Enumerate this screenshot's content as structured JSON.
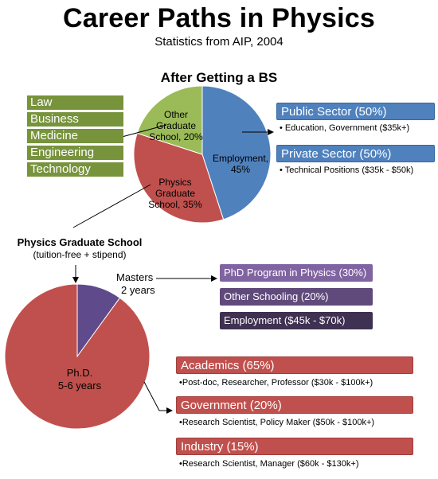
{
  "title": "Career Paths in Physics",
  "subtitle": "Statistics from AIP, 2004",
  "bs_section": {
    "heading": "After Getting a BS",
    "slices": [
      {
        "label": "Employment,",
        "value_label": "45%",
        "value": 45,
        "color": "#4f81bd"
      },
      {
        "label": "Physics Graduate School, 35%",
        "line1": "Physics",
        "line2": "Graduate",
        "line3": "School, 35%",
        "value": 35,
        "color": "#c0504d"
      },
      {
        "label": "Other Graduate School, 20%",
        "line1": "Other",
        "line2": "Graduate",
        "line3": "School, 20%",
        "value": 20,
        "color": "#9bbb59"
      }
    ],
    "other_grad_fields": [
      "Law",
      "Business",
      "Medicine",
      "Engineering",
      "Technology"
    ],
    "field_color": "#77933c",
    "sectors": [
      {
        "label": "Public Sector (50%)",
        "detail": "• Education, Government ($35k+)"
      },
      {
        "label": "Private Sector (50%)",
        "detail": "• Technical Positions ($35k - $50k)"
      }
    ]
  },
  "grad_section": {
    "heading": "Physics Graduate School",
    "subheading": "(tuition-free + stipend)",
    "slices": [
      {
        "label": "Masters",
        "sublabel": "2 years",
        "value": 10,
        "color": "#5f4a8b"
      },
      {
        "label": "Ph.D.",
        "sublabel": "5-6 years",
        "value": 90,
        "color": "#c0504d"
      }
    ],
    "masters_outcomes": [
      {
        "label": "PhD Program in Physics (30%)",
        "color": "#8064a2"
      },
      {
        "label": "Other Schooling (20%)",
        "color": "#604a7b"
      },
      {
        "label": "Employment ($45k - $70k)",
        "color": "#3f3151"
      }
    ],
    "phd_outcomes": [
      {
        "label": "Academics (65%)",
        "detail": "•Post-doc, Researcher, Professor ($30k - $100k+)"
      },
      {
        "label": "Government (20%)",
        "detail": "•Research Scientist, Policy Maker ($50k - $100k+)"
      },
      {
        "label": "Industry (15%)",
        "detail": "•Research Scientist, Manager  ($60k - $130k+)"
      }
    ]
  }
}
